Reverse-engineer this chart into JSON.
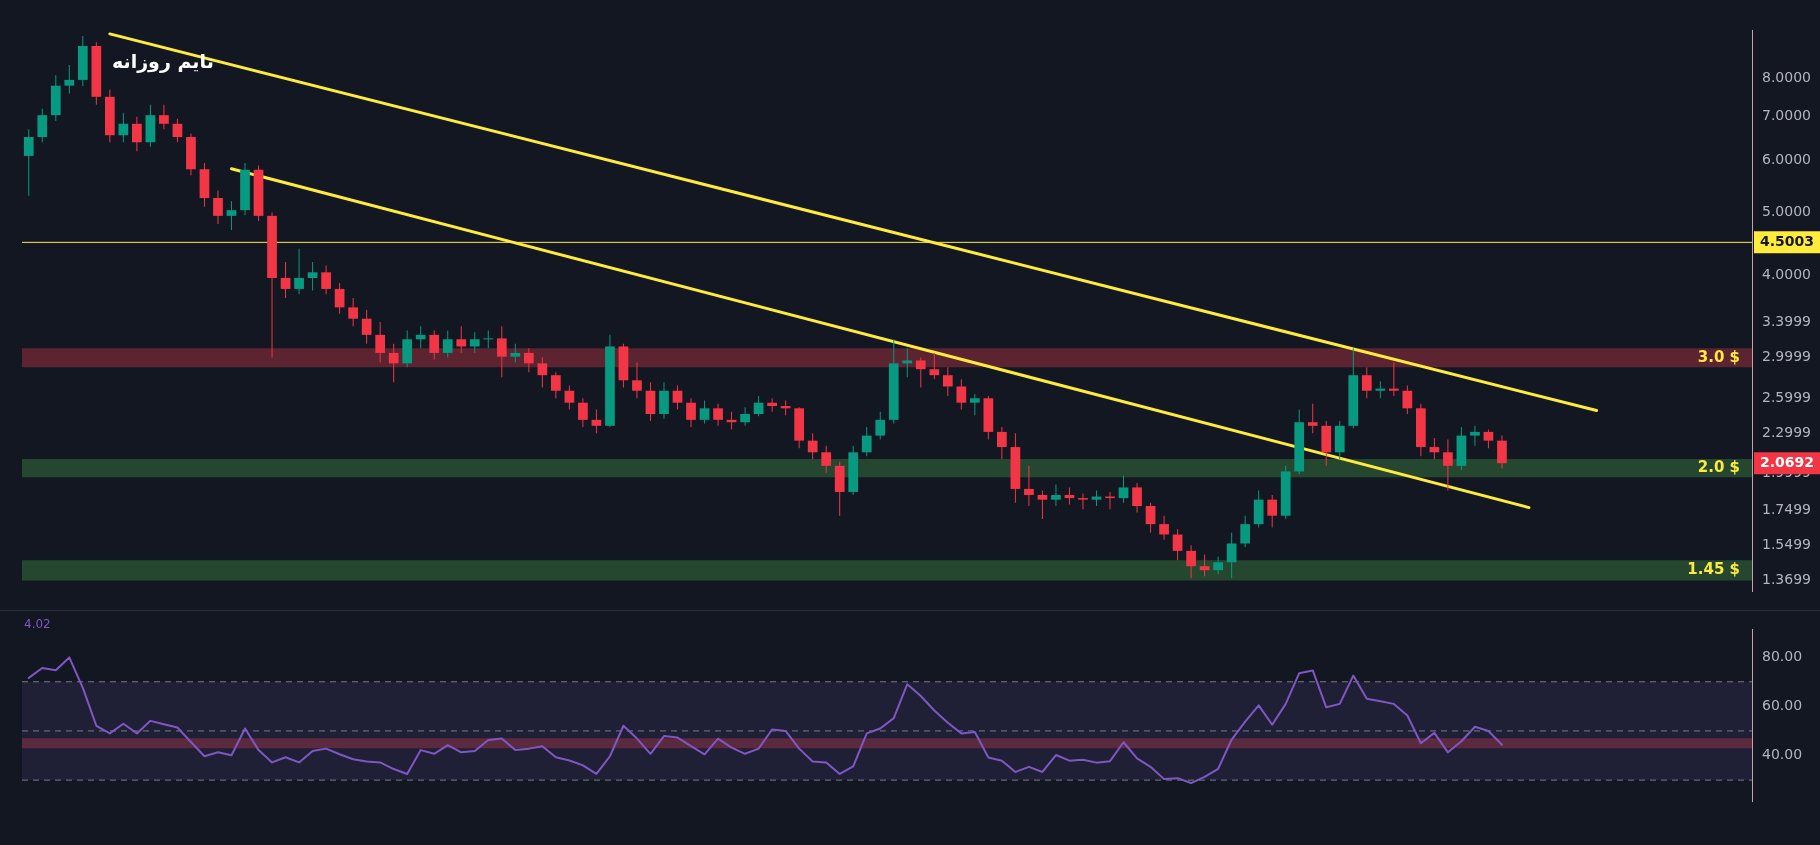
{
  "chart_data": [
    {
      "type": "candlestick",
      "title": "تایم روزانه",
      "tick_labels": "y",
      "log": true,
      "ylim": [
        1.317,
        9.5
      ],
      "yticks": [
        1.3699,
        1.5499,
        1.7499,
        1.9999,
        2.2999,
        2.5999,
        2.9999,
        3.3999,
        {
          "value": 4,
          "label": "4.0000"
        },
        {
          "value": 5,
          "label": "5.0000"
        },
        {
          "value": 6,
          "label": "6.0000"
        },
        {
          "value": 7,
          "label": "7.0000"
        },
        {
          "value": 8,
          "label": "8.0000"
        }
      ],
      "categories": [
        null,
        null,
        null,
        null,
        null,
        null,
        null,
        null,
        null,
        null,
        null,
        null,
        null,
        null,
        null,
        null,
        null,
        null,
        null,
        null,
        null,
        null,
        null,
        null,
        null,
        null,
        null,
        null,
        null,
        null,
        null,
        null,
        null,
        null,
        null,
        null,
        null,
        null,
        null,
        null,
        null,
        null,
        null,
        null,
        null,
        null,
        null,
        null,
        null,
        null,
        null,
        null,
        null,
        null,
        null,
        null,
        null,
        null,
        null,
        null,
        null,
        null,
        null,
        null,
        null,
        null,
        null,
        null,
        null,
        null,
        null,
        null,
        null,
        null,
        null,
        null,
        null,
        null,
        null,
        null,
        null,
        null,
        null,
        null,
        null,
        null,
        null,
        null,
        null,
        null,
        null,
        null,
        null,
        null,
        null,
        null,
        null,
        null,
        null,
        null,
        null,
        null,
        null,
        null,
        null,
        null,
        null,
        null,
        null,
        null,
        null,
        null,
        null,
        null,
        null,
        null,
        null,
        null,
        null,
        null,
        null,
        null,
        null,
        null,
        null,
        null,
        null,
        null
      ],
      "ohlc": [
        [
          6.1,
          6.7,
          5.3,
          6.52
        ],
        [
          6.52,
          7.2,
          6.4,
          7.04
        ],
        [
          7.04,
          8.1,
          6.9,
          7.81
        ],
        [
          7.81,
          8.4,
          7.6,
          7.97
        ],
        [
          7.97,
          9.3,
          7.8,
          8.98
        ],
        [
          8.98,
          9.1,
          7.3,
          7.51
        ],
        [
          7.51,
          7.7,
          6.4,
          6.56
        ],
        [
          6.56,
          7.1,
          6.4,
          6.83
        ],
        [
          6.83,
          7.0,
          6.2,
          6.4
        ],
        [
          6.4,
          7.3,
          6.3,
          7.04
        ],
        [
          7.04,
          7.3,
          6.7,
          6.83
        ],
        [
          6.83,
          6.95,
          6.4,
          6.52
        ],
        [
          6.52,
          6.6,
          5.7,
          5.82
        ],
        [
          5.82,
          5.95,
          5.1,
          5.26
        ],
        [
          5.26,
          5.4,
          4.8,
          4.94
        ],
        [
          4.94,
          5.2,
          4.7,
          5.04
        ],
        [
          5.04,
          5.95,
          4.95,
          5.81
        ],
        [
          5.81,
          5.9,
          4.85,
          4.94
        ],
        [
          4.94,
          5.0,
          3.0,
          3.97
        ],
        [
          3.97,
          4.2,
          3.7,
          3.82
        ],
        [
          3.82,
          4.4,
          3.75,
          3.97
        ],
        [
          3.97,
          4.2,
          3.8,
          4.05
        ],
        [
          4.05,
          4.15,
          3.75,
          3.82
        ],
        [
          3.82,
          3.9,
          3.5,
          3.58
        ],
        [
          3.58,
          3.7,
          3.35,
          3.44
        ],
        [
          3.44,
          3.55,
          3.15,
          3.25
        ],
        [
          3.25,
          3.4,
          2.95,
          3.05
        ],
        [
          3.05,
          3.15,
          2.75,
          2.94
        ],
        [
          2.94,
          3.3,
          2.9,
          3.2
        ],
        [
          3.2,
          3.35,
          3.1,
          3.25
        ],
        [
          3.25,
          3.3,
          2.98,
          3.05
        ],
        [
          3.05,
          3.3,
          3.0,
          3.2
        ],
        [
          3.2,
          3.35,
          3.05,
          3.12
        ],
        [
          3.12,
          3.28,
          3.05,
          3.2
        ],
        [
          3.2,
          3.3,
          3.1,
          3.21
        ],
        [
          3.21,
          3.35,
          2.8,
          3.01
        ],
        [
          3.01,
          3.15,
          2.95,
          3.05
        ],
        [
          3.05,
          3.1,
          2.85,
          2.94
        ],
        [
          2.94,
          3.0,
          2.7,
          2.82
        ],
        [
          2.82,
          2.85,
          2.6,
          2.67
        ],
        [
          2.67,
          2.72,
          2.5,
          2.56
        ],
        [
          2.56,
          2.6,
          2.35,
          2.41
        ],
        [
          2.41,
          2.5,
          2.3,
          2.36
        ],
        [
          2.36,
          3.25,
          2.35,
          3.12
        ],
        [
          3.12,
          3.15,
          2.7,
          2.77
        ],
        [
          2.77,
          2.95,
          2.6,
          2.67
        ],
        [
          2.67,
          2.75,
          2.4,
          2.46
        ],
        [
          2.46,
          2.75,
          2.42,
          2.67
        ],
        [
          2.67,
          2.72,
          2.5,
          2.56
        ],
        [
          2.56,
          2.6,
          2.35,
          2.41
        ],
        [
          2.41,
          2.58,
          2.38,
          2.51
        ],
        [
          2.51,
          2.55,
          2.36,
          2.41
        ],
        [
          2.41,
          2.48,
          2.33,
          2.39
        ],
        [
          2.39,
          2.52,
          2.36,
          2.46
        ],
        [
          2.46,
          2.62,
          2.44,
          2.56
        ],
        [
          2.56,
          2.6,
          2.48,
          2.53
        ],
        [
          2.53,
          2.58,
          2.45,
          2.51
        ],
        [
          2.51,
          2.52,
          2.18,
          2.24
        ],
        [
          2.24,
          2.3,
          2.1,
          2.15
        ],
        [
          2.15,
          2.2,
          2.0,
          2.05
        ],
        [
          2.05,
          2.08,
          1.72,
          1.87
        ],
        [
          1.87,
          2.2,
          1.85,
          2.15
        ],
        [
          2.15,
          2.35,
          2.12,
          2.28
        ],
        [
          2.28,
          2.48,
          2.25,
          2.41
        ],
        [
          2.41,
          3.2,
          2.38,
          2.94
        ],
        [
          2.94,
          3.1,
          2.8,
          2.97
        ],
        [
          2.97,
          3.0,
          2.7,
          2.88
        ],
        [
          2.88,
          3.05,
          2.78,
          2.82
        ],
        [
          2.82,
          2.9,
          2.62,
          2.71
        ],
        [
          2.71,
          2.78,
          2.5,
          2.56
        ],
        [
          2.56,
          2.64,
          2.45,
          2.6
        ],
        [
          2.6,
          2.62,
          2.25,
          2.31
        ],
        [
          2.31,
          2.35,
          2.1,
          2.19
        ],
        [
          2.19,
          2.3,
          1.8,
          1.89
        ],
        [
          1.89,
          2.05,
          1.78,
          1.85
        ],
        [
          1.85,
          1.88,
          1.7,
          1.82
        ],
        [
          1.82,
          1.92,
          1.78,
          1.85
        ],
        [
          1.85,
          1.9,
          1.79,
          1.83
        ],
        [
          1.83,
          1.86,
          1.76,
          1.82
        ],
        [
          1.82,
          1.88,
          1.78,
          1.84
        ],
        [
          1.84,
          1.87,
          1.76,
          1.83
        ],
        [
          1.83,
          1.98,
          1.8,
          1.9
        ],
        [
          1.9,
          1.93,
          1.74,
          1.78
        ],
        [
          1.78,
          1.8,
          1.62,
          1.67
        ],
        [
          1.67,
          1.72,
          1.58,
          1.61
        ],
        [
          1.61,
          1.64,
          1.47,
          1.52
        ],
        [
          1.52,
          1.55,
          1.38,
          1.44
        ],
        [
          1.44,
          1.5,
          1.39,
          1.42
        ],
        [
          1.42,
          1.49,
          1.4,
          1.46
        ],
        [
          1.46,
          1.62,
          1.38,
          1.56
        ],
        [
          1.56,
          1.72,
          1.54,
          1.67
        ],
        [
          1.67,
          1.88,
          1.65,
          1.82
        ],
        [
          1.82,
          1.85,
          1.65,
          1.72
        ],
        [
          1.72,
          2.05,
          1.7,
          2.01
        ],
        [
          2.01,
          2.5,
          1.99,
          2.39
        ],
        [
          2.39,
          2.55,
          2.3,
          2.36
        ],
        [
          2.36,
          2.4,
          2.05,
          2.15
        ],
        [
          2.15,
          2.4,
          2.1,
          2.36
        ],
        [
          2.36,
          3.1,
          2.34,
          2.82
        ],
        [
          2.82,
          2.9,
          2.6,
          2.67
        ],
        [
          2.67,
          2.76,
          2.6,
          2.69
        ],
        [
          2.69,
          2.95,
          2.62,
          2.67
        ],
        [
          2.67,
          2.72,
          2.46,
          2.51
        ],
        [
          2.51,
          2.55,
          2.12,
          2.19
        ],
        [
          2.19,
          2.26,
          2.1,
          2.15
        ],
        [
          2.15,
          2.25,
          1.88,
          2.05
        ],
        [
          2.05,
          2.35,
          2.02,
          2.28
        ],
        [
          2.28,
          2.36,
          2.2,
          2.31
        ],
        [
          2.31,
          2.33,
          2.18,
          2.24
        ],
        [
          2.24,
          2.28,
          2.03,
          2.0692
        ],
        null,
        null,
        null,
        null,
        null,
        null,
        null,
        null,
        null,
        null,
        null,
        null,
        null,
        null,
        null,
        null,
        null,
        null
      ],
      "colors": [
        "#089981",
        "#089981",
        "#089981",
        "#089981",
        "#089981",
        "#f23645",
        "#f23645",
        "#089981",
        "#f23645",
        "#089981",
        "#f23645",
        "#f23645",
        "#f23645",
        "#f23645",
        "#f23645",
        "#089981",
        "#089981",
        "#f23645",
        "#f23645",
        "#f23645",
        "#089981",
        "#089981",
        "#f23645",
        "#f23645",
        "#f23645",
        "#f23645",
        "#f23645",
        "#f23645",
        "#089981",
        "#089981",
        "#f23645",
        "#089981",
        "#f23645",
        "#089981",
        "#089981",
        "#f23645",
        "#089981",
        "#f23645",
        "#f23645",
        "#f23645",
        "#f23645",
        "#f23645",
        "#f23645",
        "#089981",
        "#f23645",
        "#f23645",
        "#f23645",
        "#089981",
        "#f23645",
        "#f23645",
        "#089981",
        "#f23645",
        "#f23645",
        "#089981",
        "#089981",
        "#f23645",
        "#f23645",
        "#f23645",
        "#f23645",
        "#f23645",
        "#f23645",
        "#089981",
        "#089981",
        "#089981",
        "#089981",
        "#089981",
        "#f23645",
        "#f23645",
        "#f23645",
        "#f23645",
        "#089981",
        "#f23645",
        "#f23645",
        "#f23645",
        "#f23645",
        "#f23645",
        "#089981",
        "#f23645",
        "#f23645",
        "#089981",
        "#f23645",
        "#089981",
        "#f23645",
        "#f23645",
        "#f23645",
        "#f23645",
        "#f23645",
        "#f23645",
        "#089981",
        "#089981",
        "#089981",
        "#089981",
        "#f23645",
        "#089981",
        "#089981",
        "#f23645",
        "#f23645",
        "#089981",
        "#089981",
        "#f23645",
        "#089981",
        "#f23645",
        "#f23645",
        "#f23645",
        "#f23645",
        "#f23645",
        "#089981",
        "#089981",
        "#f23645",
        "#f23645",
        null,
        null,
        null,
        null,
        null,
        null,
        null,
        null,
        null,
        null,
        null,
        null,
        null,
        null,
        null,
        null,
        null,
        null
      ],
      "series": [
        {
          "type": "line",
          "color": "#ffeb3b",
          "values": [
            null,
            null,
            null,
            null,
            null,
            null,
            9.37,
            null,
            null,
            null,
            null,
            null,
            null,
            null,
            null,
            null,
            null,
            null,
            null,
            null,
            null,
            null,
            null,
            null,
            null,
            null,
            null,
            null,
            null,
            null,
            null,
            null,
            null,
            null,
            null,
            null,
            null,
            null,
            null,
            null,
            null,
            null,
            null,
            null,
            null,
            null,
            null,
            null,
            null,
            null,
            null,
            null,
            null,
            null,
            null,
            null,
            null,
            null,
            null,
            null,
            null,
            null,
            null,
            null,
            null,
            null,
            null,
            null,
            null,
            null,
            null,
            null,
            null,
            null,
            null,
            null,
            null,
            null,
            null,
            null,
            null,
            null,
            null,
            null,
            null,
            null,
            null,
            null,
            null,
            null,
            null,
            null,
            null,
            null,
            null,
            null,
            null,
            null,
            null,
            null,
            null,
            null,
            null,
            null,
            null,
            null,
            null,
            null,
            null,
            null,
            null,
            null,
            null,
            null,
            null,
            null,
            2.49,
            null,
            null,
            null,
            null,
            null,
            null,
            null,
            null,
            null,
            null,
            null
          ]
        },
        {
          "type": "line",
          "color": "#ffeb3b",
          "values": [
            null,
            null,
            null,
            null,
            null,
            null,
            null,
            null,
            null,
            null,
            null,
            null,
            null,
            null,
            null,
            5.83,
            null,
            null,
            null,
            null,
            null,
            null,
            null,
            null,
            null,
            null,
            null,
            null,
            null,
            null,
            null,
            null,
            null,
            null,
            null,
            null,
            null,
            null,
            null,
            null,
            null,
            null,
            null,
            null,
            null,
            null,
            null,
            null,
            null,
            null,
            null,
            null,
            null,
            null,
            null,
            null,
            null,
            null,
            null,
            null,
            null,
            null,
            null,
            null,
            null,
            null,
            null,
            null,
            null,
            null,
            null,
            null,
            null,
            null,
            null,
            null,
            null,
            null,
            null,
            null,
            null,
            null,
            null,
            null,
            null,
            null,
            null,
            null,
            null,
            null,
            null,
            null,
            null,
            null,
            null,
            null,
            null,
            null,
            null,
            null,
            null,
            null,
            null,
            null,
            null,
            null,
            null,
            null,
            null,
            null,
            null,
            1.77,
            null,
            null,
            null,
            null,
            null,
            null,
            null,
            null,
            null,
            null,
            null,
            null,
            null,
            null,
            null,
            null
          ]
        }
      ],
      "ref_lines": [
        {
          "axis": "y",
          "value": 4.5003,
          "label": "4.5003",
          "color": "#ffeb3b"
        }
      ],
      "bands": [
        {
          "axis": "y",
          "from": 2.9,
          "to": 3.1,
          "label": "3.0 $",
          "color": "#5c2330"
        },
        {
          "axis": "y",
          "from": 1.97,
          "to": 2.1,
          "label": "2.0 $",
          "color": "#26472f"
        },
        {
          "axis": "y",
          "from": 1.37,
          "to": 1.47,
          "label": "1.45 $",
          "color": "#26472f"
        }
      ],
      "annotations": [
        "2.0692"
      ]
    },
    {
      "type": "line",
      "tick_labels": "y",
      "ylim": [
        21.5,
        91.3
      ],
      "yticks": [
        {
          "value": 40,
          "label": "40.00"
        },
        {
          "value": 60,
          "label": "60.00"
        },
        {
          "value": 80,
          "label": "80.00"
        }
      ],
      "categories": [
        null,
        null,
        null,
        null,
        null,
        null,
        null,
        null,
        null,
        null,
        null,
        null,
        null,
        null,
        null,
        null,
        null,
        null,
        null,
        null,
        null,
        null,
        null,
        null,
        null,
        null,
        null,
        null,
        null,
        null,
        null,
        null,
        null,
        null,
        null,
        null,
        null,
        null,
        null,
        null,
        null,
        null,
        null,
        null,
        null,
        null,
        null,
        null,
        null,
        null,
        null,
        null,
        null,
        null,
        null,
        null,
        null,
        null,
        null,
        null,
        null,
        null,
        null,
        null,
        null,
        null,
        null,
        null,
        null,
        null,
        null,
        null,
        null,
        null,
        null,
        null,
        null,
        null,
        null,
        null,
        null,
        null,
        null,
        null,
        null,
        null,
        null,
        null,
        null,
        null,
        null,
        null,
        null,
        null,
        null,
        null,
        null,
        null,
        null,
        null,
        null,
        null,
        null,
        null,
        null,
        null,
        null,
        null,
        null,
        null,
        null,
        null,
        null,
        null,
        null,
        null,
        null,
        null,
        null,
        null,
        null,
        null,
        null,
        null,
        null,
        null,
        null,
        null
      ],
      "series": [
        {
          "color": "#7e57c2",
          "values": [
            71.6,
            75.6,
            74.7,
            79.9,
            67.5,
            52.1,
            49.0,
            52.9,
            49.0,
            54.1,
            52.7,
            51.4,
            45.5,
            39.7,
            41.3,
            40.1,
            51.0,
            42.2,
            37.2,
            39.3,
            37.2,
            41.8,
            42.8,
            40.5,
            38.5,
            37.6,
            37.2,
            34.5,
            32.5,
            42.2,
            40.7,
            44.2,
            41.3,
            41.8,
            46.3,
            46.9,
            42.2,
            42.8,
            43.8,
            39.3,
            38.0,
            36.0,
            32.5,
            39.7,
            52.1,
            46.9,
            40.7,
            47.9,
            47.3,
            43.8,
            40.5,
            46.9,
            43.2,
            40.7,
            42.8,
            50.6,
            50.0,
            42.8,
            37.6,
            37.2,
            32.5,
            35.6,
            49.0,
            51.0,
            55.2,
            69.0,
            64.2,
            58.3,
            53.3,
            49.0,
            49.6,
            39.2,
            37.9,
            33.3,
            35.4,
            33.3,
            40.2,
            37.9,
            38.3,
            37.1,
            37.7,
            45.4,
            38.8,
            35.4,
            30.4,
            30.8,
            28.8,
            31.3,
            34.6,
            46.5,
            53.8,
            60.4,
            52.5,
            61.0,
            73.5,
            74.6,
            59.6,
            61.0,
            72.5,
            63.1,
            62.1,
            61.0,
            56.3,
            45.0,
            49.2,
            41.3,
            45.8,
            51.7,
            50.0,
            44.4,
            null,
            null,
            null,
            null,
            null,
            null,
            null,
            null,
            null,
            null,
            null,
            null,
            null,
            null,
            null,
            null,
            null,
            null
          ]
        }
      ],
      "ref_lines": [
        {
          "axis": "y",
          "value": 70,
          "color": "#787b86",
          "line_style": "dashed"
        },
        {
          "axis": "y",
          "value": 50,
          "color": "#787b86",
          "line_style": "dashed"
        },
        {
          "axis": "y",
          "value": 30,
          "color": "#787b86",
          "line_style": "dashed"
        }
      ],
      "bands": [
        {
          "axis": "y",
          "from": 30,
          "to": 70,
          "color": "#1f1f36"
        },
        {
          "axis": "y",
          "from": 43,
          "to": 47,
          "color": "#5c2a3e"
        }
      ],
      "annotations": [
        "4.02"
      ]
    }
  ]
}
